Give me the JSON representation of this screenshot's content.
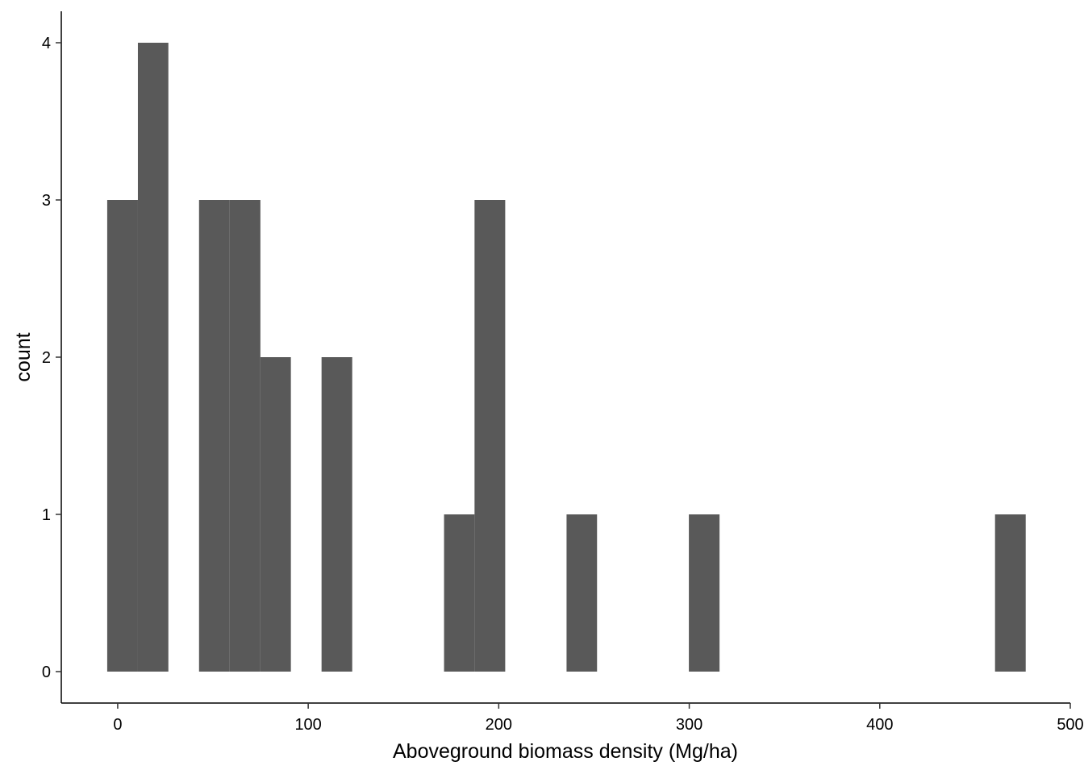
{
  "chart_data": {
    "type": "histogram",
    "x_label": "Aboveground biomass density (Mg/ha)",
    "y_label": "count",
    "bins": [
      -5.5,
      10.6,
      26.6,
      42.7,
      58.8,
      74.9,
      90.9,
      107.0,
      123.1,
      139.1,
      155.2,
      171.3,
      187.3,
      203.4,
      219.5,
      235.6,
      251.6,
      267.7,
      283.8,
      299.8,
      315.9,
      332.0,
      348.0,
      364.1,
      380.2,
      396.3,
      412.3,
      428.4,
      444.5,
      460.5,
      476.6
    ],
    "values": [
      3,
      4,
      0,
      3,
      3,
      2,
      0,
      2,
      0,
      0,
      0,
      1,
      3,
      0,
      0,
      1,
      0,
      0,
      0,
      1,
      0,
      0,
      0,
      0,
      0,
      0,
      0,
      0,
      0,
      1
    ],
    "color": "#595959",
    "xlim": [
      -29.6,
      500
    ],
    "xticks": [
      0,
      100,
      200,
      300,
      400,
      500
    ],
    "ylim": [
      -0.2,
      4.2
    ],
    "yticks": [
      0,
      1,
      2,
      3,
      4
    ],
    "grid": false
  }
}
